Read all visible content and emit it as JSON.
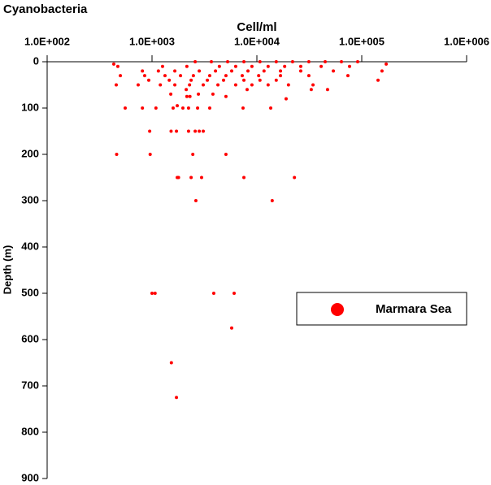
{
  "chart_data": {
    "type": "scatter",
    "title": "Cyanobacteria",
    "x_label": "Cell/ml",
    "y_label": "Depth (m)",
    "xscale": "log",
    "xaxis_position": "top",
    "legend_position": "right",
    "xlim": [
      100,
      1000000
    ],
    "xticks": [
      {
        "value": 100,
        "label": "1.0E+002"
      },
      {
        "value": 1000,
        "label": "1.0E+003"
      },
      {
        "value": 10000,
        "label": "1.0E+004"
      },
      {
        "value": 100000,
        "label": "1.0E+005"
      },
      {
        "value": 1000000,
        "label": "1.0E+006"
      }
    ],
    "ylim": [
      900,
      0
    ],
    "yticks": [
      0,
      100,
      200,
      300,
      400,
      500,
      600,
      700,
      800,
      900
    ],
    "series": [
      {
        "name": "Marmara Sea",
        "color": "#ff0000",
        "x": [
          460,
          960,
          2450,
          5070,
          1740,
          1790,
          2360,
          2970,
          7520,
          22800,
          2620,
          14000,
          1000,
          1070,
          3880,
          6070,
          5750,
          1530,
          1710,
          950,
          1520,
          1710,
          2230,
          2580,
          2820,
          3080,
          555,
          810,
          1090,
          1590,
          1970,
          2230,
          2720,
          3550,
          7380,
          13550,
          19000,
          1740,
          47200,
          33000,
          8070,
          2120,
          432,
          2580,
          3680,
          5260,
          7520,
          10700,
          15300,
          21900,
          31300,
          44800,
          64000,
          91400,
          171000,
          472,
          1260,
          2150,
          4390,
          6280,
          8970,
          12800,
          18400,
          26200,
          41000,
          76500,
          810,
          1150,
          1650,
          2820,
          4030,
          5750,
          8220,
          11700,
          16800,
          26200,
          53600,
          156000,
          499,
          851,
          1330,
          1870,
          2480,
          3550,
          5070,
          7250,
          10400,
          16800,
          31300,
          73800,
          931,
          1460,
          2360,
          3370,
          4810,
          7520,
          10700,
          15300,
          143000,
          456,
          738,
          1200,
          1650,
          2280,
          3080,
          4250,
          6280,
          8970,
          12800,
          20000,
          34300,
          2150,
          2300,
          5070,
          1510,
          2770,
          3810
        ],
        "values": [
          200,
          200,
          200,
          200,
          250,
          250,
          250,
          250,
          250,
          250,
          300,
          300,
          500,
          500,
          500,
          500,
          575,
          650,
          725,
          150,
          150,
          150,
          150,
          150,
          150,
          150,
          100,
          100,
          100,
          100,
          100,
          100,
          100,
          100,
          100,
          100,
          80,
          95,
          60,
          60,
          60,
          60,
          5,
          0,
          0,
          0,
          0,
          0,
          0,
          0,
          0,
          0,
          0,
          0,
          5,
          10,
          10,
          10,
          10,
          10,
          10,
          10,
          10,
          10,
          10,
          10,
          20,
          20,
          20,
          20,
          20,
          20,
          20,
          20,
          20,
          20,
          20,
          20,
          30,
          30,
          30,
          30,
          30,
          30,
          30,
          30,
          30,
          30,
          30,
          30,
          40,
          40,
          40,
          40,
          40,
          40,
          40,
          40,
          40,
          50,
          50,
          50,
          50,
          50,
          50,
          50,
          50,
          50,
          50,
          50,
          50,
          75,
          75,
          75,
          70,
          70,
          70
        ]
      }
    ]
  }
}
